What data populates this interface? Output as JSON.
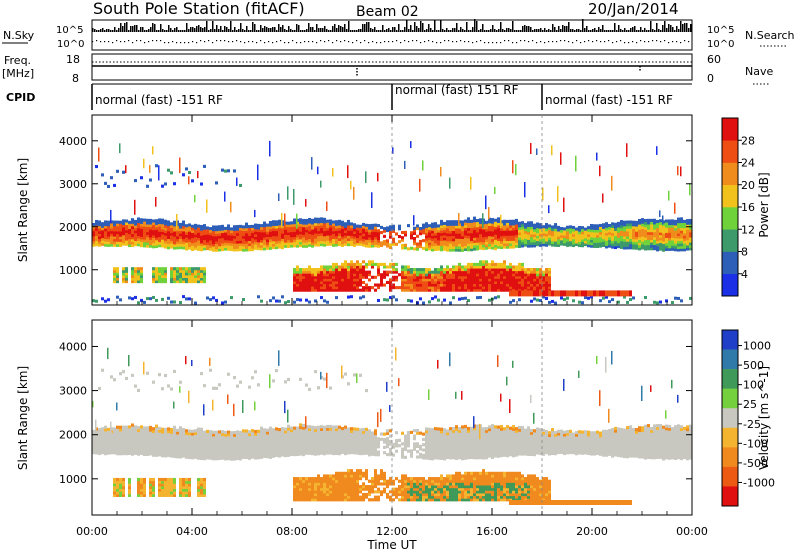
{
  "header": {
    "station": "South Pole Station (fitACF)",
    "beam": "Beam 02",
    "date": "20/Jan/2014"
  },
  "summary": {
    "nsky_label": "N.Sky",
    "nsky_ticks": [
      "10^5",
      "10^0"
    ],
    "nsearch_label": "N.Search",
    "nsearch_ticks": [
      "10^5",
      "10^0"
    ],
    "freq_label_1": "Freq.",
    "freq_label_2": "[MHz]",
    "freq_ticks": [
      "18",
      "8"
    ],
    "nave_label": "Nave",
    "nave_ticks": [
      "60",
      "0"
    ],
    "cpid_label": "CPID",
    "cpid_segments": [
      {
        "label": "normal (fast) -151 RF",
        "start_hour": 0,
        "end_hour": 12
      },
      {
        "label": "normal (fast) 151 RF",
        "start_hour": 12,
        "end_hour": 18
      },
      {
        "label": "normal (fast) -151 RF",
        "start_hour": 18,
        "end_hour": 24
      }
    ]
  },
  "chart_data": [
    {
      "type": "heatmap",
      "name": "power-panel",
      "ylabel": "Slant Range [km]",
      "ylim": [
        180,
        4600
      ],
      "yticks": [
        1000,
        2000,
        3000,
        4000
      ],
      "xlim": [
        0,
        24
      ],
      "colorbar": {
        "label": "Power [dB]",
        "ticks": [
          "4",
          "8",
          "12",
          "16",
          "20",
          "24",
          "28"
        ],
        "colors": [
          "#1a2fe6",
          "#2e5fb8",
          "#3d9a6a",
          "#6fd23a",
          "#f2c21c",
          "#f08c1c",
          "#ee4d14",
          "#e01010"
        ]
      },
      "bands": [
        {
          "range_km": [
            1500,
            2150
          ],
          "hours": [
            0,
            24
          ],
          "level": "medium-high"
        },
        {
          "range_km": [
            400,
            1150
          ],
          "hours": [
            8,
            18.2
          ],
          "level": "high"
        },
        {
          "range_km": [
            2800,
            3400
          ],
          "hours": [
            0,
            4.5
          ],
          "level": "low"
        },
        {
          "range_km": [
            300,
            500
          ],
          "hours": [
            18.5,
            22
          ],
          "level": "high"
        }
      ]
    },
    {
      "type": "heatmap",
      "name": "velocity-panel",
      "xlabel": "Time UT",
      "ylabel": "Slant Range [km]",
      "ylim": [
        180,
        4600
      ],
      "yticks": [
        1000,
        2000,
        3000,
        4000
      ],
      "xlim": [
        0,
        24
      ],
      "xticks": [
        "00:00",
        "04:00",
        "08:00",
        "12:00",
        "16:00",
        "20:00",
        "00:00"
      ],
      "colorbar": {
        "label": "Velocity [m s^-1]",
        "ticks": [
          "1000",
          "500",
          "100",
          "25",
          "-25",
          "-100",
          "-500",
          "-1000"
        ],
        "colors": [
          "#1f3fc8",
          "#2f7aa8",
          "#3f9a5a",
          "#74d03c",
          "#c8c8c0",
          "#f5b430",
          "#f08a1e",
          "#ec5a14",
          "#e01010"
        ]
      },
      "bands": [
        {
          "range_km": [
            1500,
            2150
          ],
          "hours": [
            0,
            24
          ],
          "velocity": "ground-scatter"
        },
        {
          "range_km": [
            400,
            1150
          ],
          "hours": [
            8,
            18.2
          ],
          "velocity": "-100 to -500"
        },
        {
          "range_km": [
            2900,
            3500
          ],
          "hours": [
            0,
            11
          ],
          "velocity": "ground-scatter"
        }
      ]
    }
  ]
}
